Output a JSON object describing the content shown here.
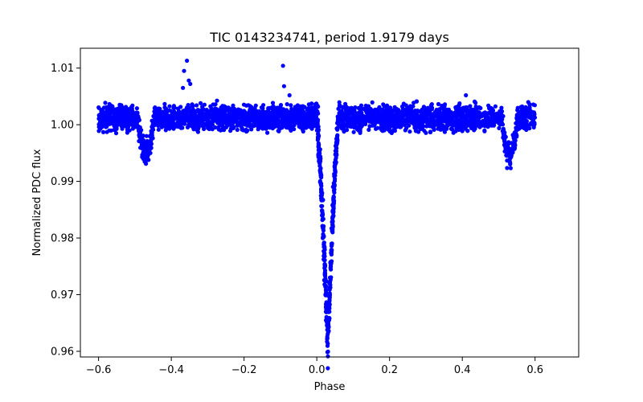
{
  "chart_data": {
    "type": "scatter",
    "title": "TIC 0143234741, period 1.9179 days",
    "xlabel": "Phase",
    "ylabel": "Normalized PDC flux",
    "xlim": [
      -0.65,
      0.72
    ],
    "ylim": [
      0.959,
      1.0135
    ],
    "xticks": [
      -0.6,
      -0.4,
      -0.2,
      0.0,
      0.2,
      0.4,
      0.6
    ],
    "xtick_labels": [
      "−0.6",
      "−0.4",
      "−0.2",
      "0.0",
      "0.2",
      "0.4",
      "0.6"
    ],
    "yticks": [
      0.96,
      0.97,
      0.98,
      0.99,
      1.0,
      1.01
    ],
    "ytick_labels": [
      "0.96",
      "0.97",
      "0.98",
      "0.99",
      "1.00",
      "1.01"
    ],
    "marker_color": "#0000ff",
    "grid": false,
    "series": [
      {
        "phase_range": [
          -0.6,
          0.6
        ],
        "baseline_flux": 1.0012,
        "scatter": 0.0014,
        "primary_eclipse": {
          "center_phase": 0.03,
          "min_flux": 0.9615,
          "width_phase": 0.03
        },
        "secondary_eclipses": [
          {
            "center_phase": -0.47,
            "min_flux": 0.9928
          },
          {
            "center_phase": 0.53,
            "min_flux": 0.9928
          }
        ],
        "outliers": [
          {
            "x": -0.357,
            "y": 1.0113
          },
          {
            "x": -0.365,
            "y": 1.0095
          },
          {
            "x": -0.352,
            "y": 1.0078
          },
          {
            "x": -0.348,
            "y": 1.0072
          },
          {
            "x": -0.368,
            "y": 1.0065
          },
          {
            "x": -0.093,
            "y": 1.0104
          },
          {
            "x": -0.09,
            "y": 1.0068
          },
          {
            "x": -0.075,
            "y": 1.0052
          },
          {
            "x": 0.41,
            "y": 1.0052
          }
        ]
      }
    ]
  }
}
